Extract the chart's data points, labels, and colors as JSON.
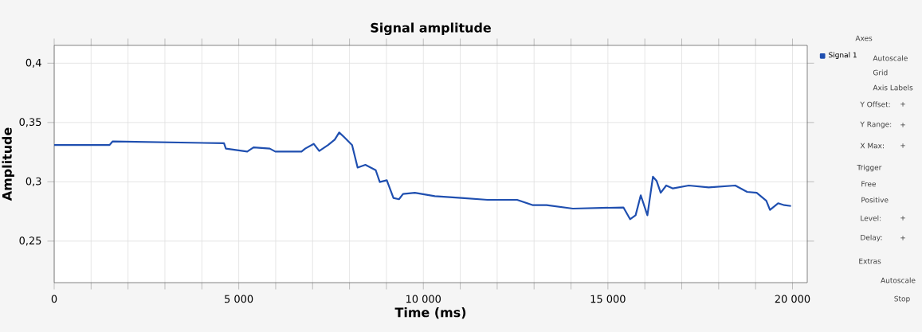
{
  "chart_data": [
    {
      "type": "line",
      "title": "Signal amplitude",
      "xlabel": "Time (ms)",
      "ylabel": "Amplitude",
      "xlim": [
        0,
        20400
      ],
      "ylim": [
        0.215,
        0.415
      ],
      "xticks": [
        {
          "value": 0,
          "label": "0"
        },
        {
          "value": 1000,
          "label": null
        },
        {
          "value": 2000,
          "label": null
        },
        {
          "value": 3000,
          "label": null
        },
        {
          "value": 4000,
          "label": null
        },
        {
          "value": 5000,
          "label": "5 000"
        },
        {
          "value": 6000,
          "label": null
        },
        {
          "value": 7000,
          "label": null
        },
        {
          "value": 8000,
          "label": null
        },
        {
          "value": 9000,
          "label": null
        },
        {
          "value": 10000,
          "label": "10 000"
        },
        {
          "value": 11000,
          "label": null
        },
        {
          "value": 12000,
          "label": null
        },
        {
          "value": 13000,
          "label": null
        },
        {
          "value": 14000,
          "label": null
        },
        {
          "value": 15000,
          "label": "15 000"
        },
        {
          "value": 16000,
          "label": null
        },
        {
          "value": 17000,
          "label": null
        },
        {
          "value": 18000,
          "label": null
        },
        {
          "value": 19000,
          "label": null
        },
        {
          "value": 20000,
          "label": "20 000"
        }
      ],
      "yticks": [
        {
          "value": 0.25,
          "label": "0,25"
        },
        {
          "value": 0.3,
          "label": "0,3"
        },
        {
          "value": 0.35,
          "label": "0,35"
        },
        {
          "value": 0.4,
          "label": "0,4"
        }
      ],
      "grid": true,
      "legend": "top right",
      "marker": "none",
      "line_style": "solid",
      "series": [
        {
          "name": "Signal 1",
          "color": "#1f4fb0",
          "x": [
            0,
            1500,
            1580,
            4600,
            4650,
            5230,
            5400,
            5840,
            5990,
            6700,
            6800,
            7030,
            7180,
            7420,
            7600,
            7720,
            7850,
            8070,
            8220,
            8430,
            8710,
            8820,
            9010,
            9190,
            9340,
            9450,
            9770,
            10310,
            11030,
            11740,
            12540,
            12970,
            13340,
            14050,
            15420,
            15600,
            15750,
            15890,
            16070,
            16220,
            16320,
            16430,
            16580,
            16760,
            17190,
            17730,
            18450,
            18770,
            19030,
            19290,
            19390,
            19610,
            19780,
            19960
          ],
          "values": [
            0.331,
            0.331,
            0.334,
            0.3325,
            0.328,
            0.3255,
            0.329,
            0.328,
            0.3255,
            0.3255,
            0.328,
            0.332,
            0.326,
            0.331,
            0.3356,
            0.3416,
            0.3378,
            0.331,
            0.312,
            0.3143,
            0.3098,
            0.2998,
            0.3013,
            0.2864,
            0.2853,
            0.2897,
            0.2908,
            0.2879,
            0.2864,
            0.2848,
            0.2848,
            0.2803,
            0.2803,
            0.2774,
            0.2784,
            0.2685,
            0.2718,
            0.2886,
            0.2718,
            0.3043,
            0.3007,
            0.2908,
            0.2969,
            0.2944,
            0.2969,
            0.2953,
            0.2969,
            0.2915,
            0.2908,
            0.2841,
            0.2763,
            0.2819,
            0.2803,
            0.2796
          ]
        }
      ]
    },
    {
      "type": "other",
      "annotations": [
        "Axes",
        "Autoscale",
        "Grid",
        "Axis Labels",
        "Y Offset:",
        "+",
        "Y Range:",
        "+",
        "X Max:",
        "+",
        "Trigger",
        "Free",
        "Positive",
        "Level:",
        "+",
        "Delay:",
        "+",
        "Extras",
        "Autoscale",
        "Stop"
      ]
    }
  ]
}
